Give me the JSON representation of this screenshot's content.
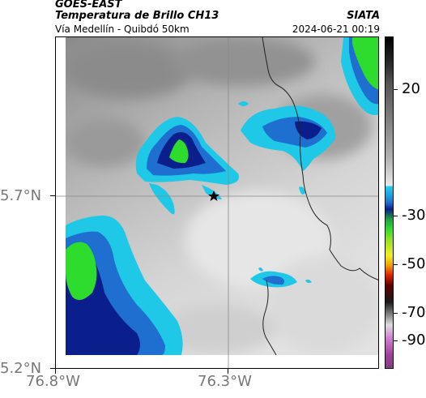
{
  "header": {
    "satellite": "GOES-EAST",
    "product": "Temperatura de Brillo CH13",
    "region": "Vía Medellín - Quibdó 50km",
    "org": "SIATA",
    "timestamp": "2024-06-21 00:19"
  },
  "axes": {
    "lat_labels": [
      "5.7°N",
      "5.2°N"
    ],
    "lon_labels": [
      "76.8°W",
      "76.3°W"
    ]
  },
  "colorbar": {
    "labels": [
      "20",
      "-30",
      "-50",
      "-70",
      "-90"
    ]
  },
  "colors": {
    "cold_green": "#2ddc2d",
    "deep_blue": "#0a1f8c",
    "mid_blue": "#1f6fd0",
    "cyan": "#1ec8e6",
    "gray_dark": "#8c8c8c",
    "gray_light": "#dcdcdc"
  }
}
